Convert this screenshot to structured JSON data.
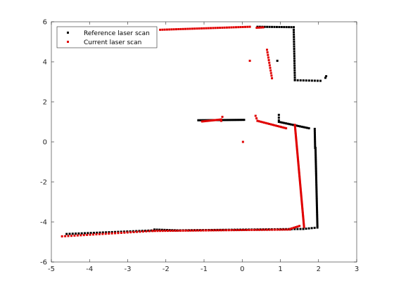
{
  "chart_data": {
    "type": "scatter",
    "title": "",
    "xlabel": "",
    "ylabel": "",
    "xlim": [
      -5,
      3
    ],
    "ylim": [
      -6,
      6
    ],
    "xticks": [
      -5,
      -4,
      -3,
      -2,
      -1,
      0,
      1,
      2,
      3
    ],
    "yticks": [
      -6,
      -4,
      -2,
      0,
      2,
      4,
      6
    ],
    "grid": false,
    "legend_position": "top-left",
    "series": [
      {
        "name": "Reference laser scan",
        "color": "#000000",
        "marker": "dot",
        "segments": [
          {
            "from": [
              -4.6,
              -4.6
            ],
            "to": [
              -2.3,
              -4.42
            ],
            "count": 30
          },
          {
            "from": [
              -2.3,
              -4.38
            ],
            "to": [
              -1.7,
              -4.42
            ],
            "count": 10
          },
          {
            "from": [
              -1.7,
              -4.42
            ],
            "to": [
              1.6,
              -4.35
            ],
            "count": 45
          },
          {
            "from": [
              1.6,
              -4.35
            ],
            "to": [
              1.97,
              -4.28
            ],
            "count": 6
          },
          {
            "from": [
              1.97,
              -4.2
            ],
            "to": [
              1.92,
              -0.3
            ],
            "count": 45
          },
          {
            "from": [
              1.91,
              -0.3
            ],
            "to": [
              1.9,
              0.65
            ],
            "count": 10
          },
          {
            "from": [
              -1.15,
              1.08
            ],
            "to": [
              0.05,
              1.1
            ],
            "count": 30
          },
          {
            "from": [
              0.96,
              1.0
            ],
            "to": [
              1.75,
              0.68
            ],
            "count": 18
          },
          {
            "from": [
              0.96,
              1.35
            ],
            "to": [
              0.96,
              1.08
            ],
            "count": 3
          },
          {
            "from": [
              0.4,
              5.75
            ],
            "to": [
              1.35,
              5.73
            ],
            "count": 16
          },
          {
            "from": [
              1.35,
              5.6
            ],
            "to": [
              1.38,
              3.1
            ],
            "count": 22
          },
          {
            "from": [
              1.38,
              3.08
            ],
            "to": [
              2.05,
              3.05
            ],
            "count": 10
          },
          {
            "from": [
              2.18,
              3.2
            ],
            "to": [
              2.2,
              3.28
            ],
            "count": 2
          },
          {
            "from": [
              0.92,
              4.05
            ],
            "to": [
              0.92,
              4.05
            ],
            "count": 1
          }
        ]
      },
      {
        "name": "Current laser scan",
        "color": "#e00000",
        "marker": "dot",
        "segments": [
          {
            "from": [
              -4.72,
              -4.72
            ],
            "to": [
              -2.35,
              -4.45
            ],
            "count": 30
          },
          {
            "from": [
              -2.35,
              -4.45
            ],
            "to": [
              1.25,
              -4.38
            ],
            "count": 55
          },
          {
            "from": [
              1.25,
              -4.35
            ],
            "to": [
              1.5,
              -4.2
            ],
            "count": 6
          },
          {
            "from": [
              1.62,
              -4.25
            ],
            "to": [
              1.38,
              0.85
            ],
            "count": 75
          },
          {
            "from": [
              -1.05,
              1.02
            ],
            "to": [
              -0.55,
              1.12
            ],
            "count": 14
          },
          {
            "from": [
              -0.55,
              1.05
            ],
            "to": [
              -0.52,
              1.25
            ],
            "count": 2
          },
          {
            "from": [
              0.35,
              1.3
            ],
            "to": [
              0.4,
              1.05
            ],
            "count": 3
          },
          {
            "from": [
              0.4,
              1.05
            ],
            "to": [
              1.15,
              0.68
            ],
            "count": 18
          },
          {
            "from": [
              -2.15,
              5.6
            ],
            "to": [
              0.2,
              5.75
            ],
            "count": 40
          },
          {
            "from": [
              0.38,
              5.7
            ],
            "to": [
              0.55,
              5.72
            ],
            "count": 4
          },
          {
            "from": [
              0.65,
              4.6
            ],
            "to": [
              0.78,
              3.18
            ],
            "count": 12
          },
          {
            "from": [
              0.2,
              4.05
            ],
            "to": [
              0.2,
              4.05
            ],
            "count": 1
          },
          {
            "from": [
              0.02,
              0.0
            ],
            "to": [
              0.02,
              0.0
            ],
            "count": 1
          }
        ]
      }
    ]
  }
}
